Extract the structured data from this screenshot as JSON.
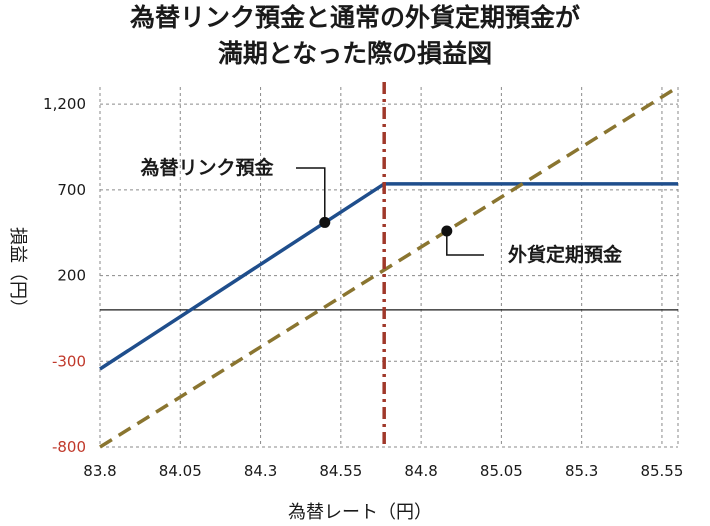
{
  "chart_data": {
    "type": "line",
    "title_lines": [
      "為替リンク預金と通常の外貨定期預金が",
      "満期となった際の損益図"
    ],
    "xlabel": "為替レート（円）",
    "ylabel": "損益（円）",
    "xlim": [
      83.8,
      85.6
    ],
    "ylim": [
      -800,
      1300
    ],
    "x_ticks": [
      "83.8",
      "84.05",
      "84.3",
      "84.55",
      "84.8",
      "85.05",
      "85.3",
      "85.55"
    ],
    "x_tick_values": [
      83.8,
      84.05,
      84.3,
      84.55,
      84.8,
      85.05,
      85.3,
      85.55
    ],
    "y_ticks": [
      "1,200",
      "700",
      "200",
      "-300",
      "-800"
    ],
    "y_tick_values": [
      1200,
      700,
      200,
      -300,
      -800
    ],
    "grid": true,
    "zero_line": 0,
    "strike": {
      "x": 84.685,
      "color": "#a0382a"
    },
    "series": [
      {
        "name": "為替リンク預金",
        "color": "#1f4e8c",
        "style": "solid",
        "points": [
          [
            83.8,
            -345
          ],
          [
            84.685,
            735
          ],
          [
            85.6,
            735
          ]
        ],
        "marker": [
          84.5,
          510
        ]
      },
      {
        "name": "外貨定期預金",
        "color": "#8a7530",
        "style": "dashed",
        "points": [
          [
            83.8,
            -800
          ],
          [
            85.6,
            1300
          ]
        ],
        "marker": [
          84.88,
          460
        ]
      }
    ]
  }
}
